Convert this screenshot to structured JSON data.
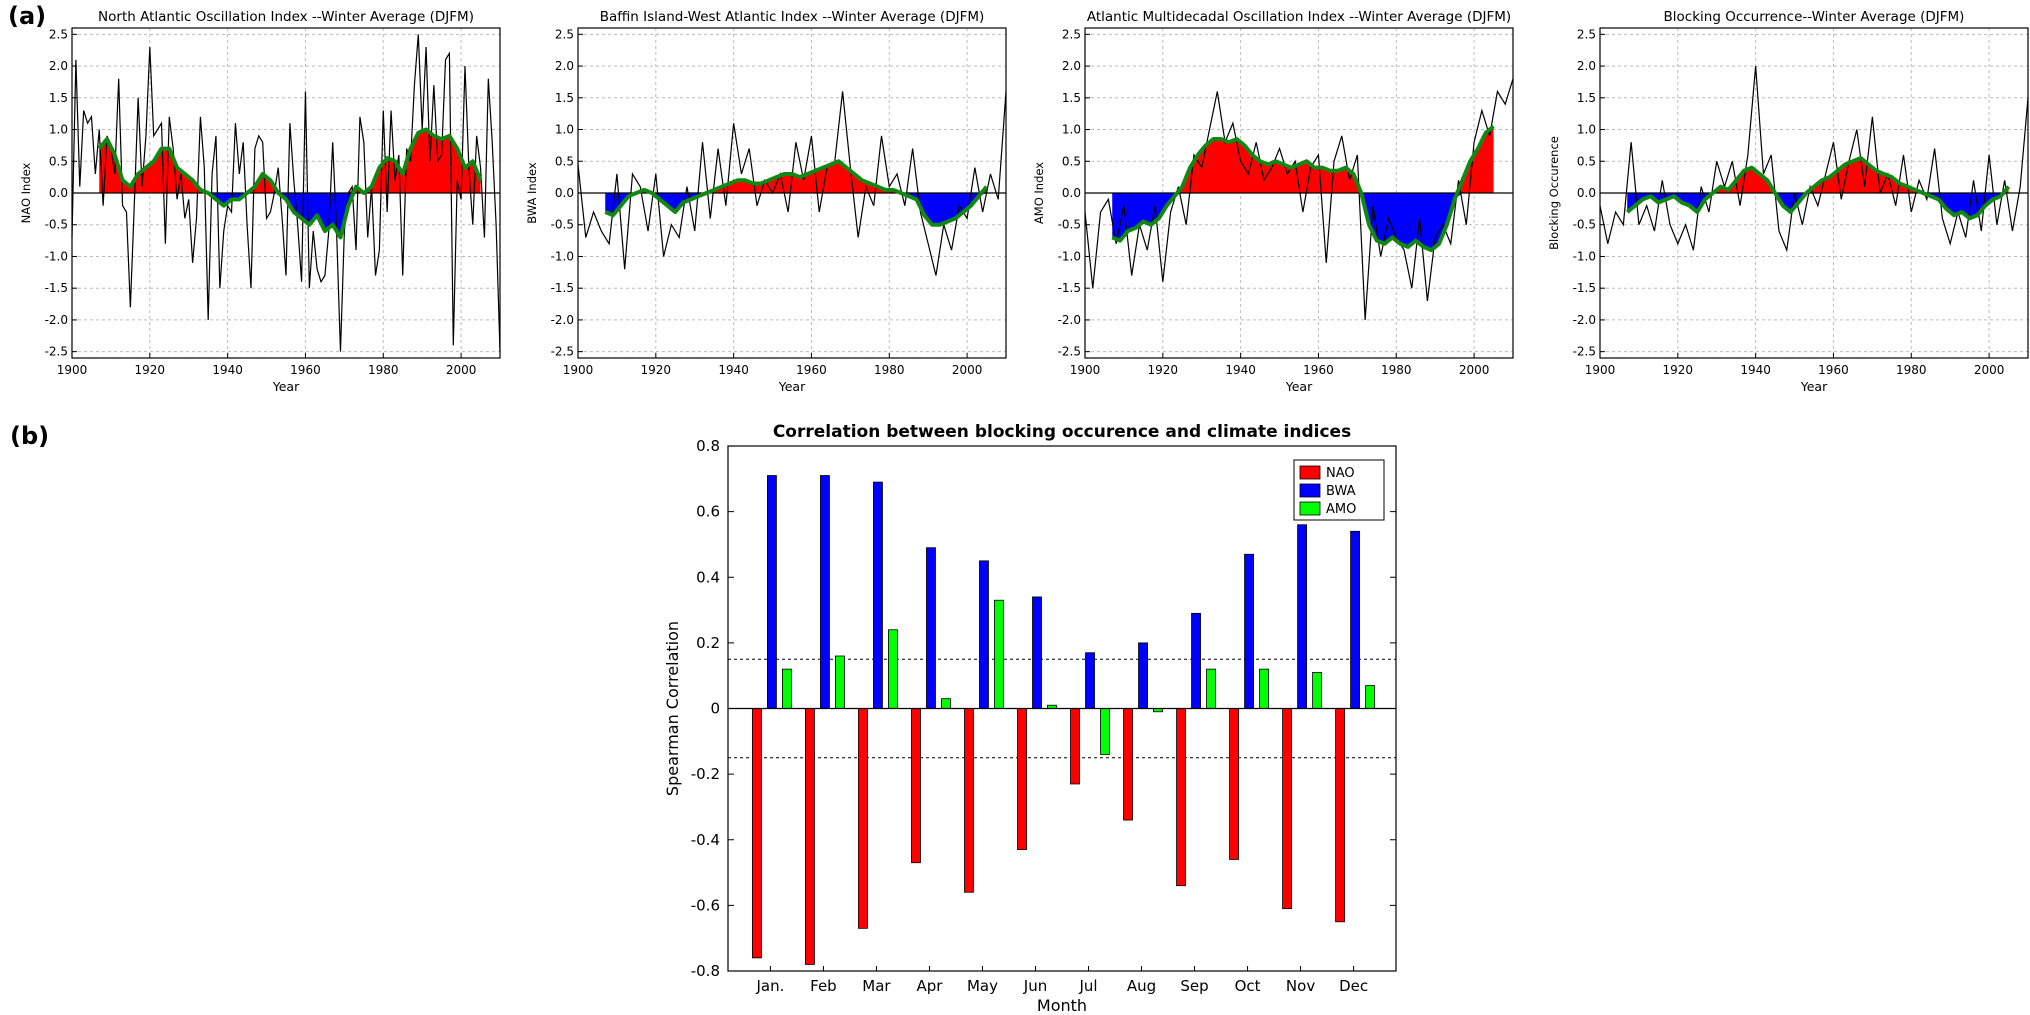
{
  "panel_labels": {
    "a": "(a)",
    "b": "(b)"
  },
  "colors": {
    "positive_fill": "#ff0000",
    "negative_fill": "#0000ff",
    "smooth_line": "#118811",
    "raw_line": "#000000",
    "grid": "#bbbbbb",
    "nao_bar": "#ff0000",
    "bwa_bar": "#0000ff",
    "amo_bar": "#00ff00"
  },
  "chart_data": [
    {
      "type": "area",
      "title": "North Atlantic Oscillation Index --Winter Average (DJFM)",
      "xlabel": "Year",
      "ylabel": "NAO Index",
      "xlim": [
        1900,
        2010
      ],
      "ylim": [
        -2.6,
        2.6
      ],
      "xticks": [
        1900,
        1920,
        1940,
        1960,
        1980,
        2000
      ],
      "yticks": [
        -2.5,
        -2.0,
        -1.5,
        -1.0,
        -0.5,
        0.0,
        0.5,
        1.0,
        1.5,
        2.0,
        2.5
      ],
      "grid": true,
      "smooth_x": [
        1907,
        1909,
        1911,
        1913,
        1915,
        1917,
        1919,
        1921,
        1923,
        1925,
        1927,
        1929,
        1931,
        1933,
        1935,
        1937,
        1939,
        1941,
        1943,
        1945,
        1947,
        1949,
        1951,
        1953,
        1955,
        1957,
        1959,
        1961,
        1963,
        1965,
        1967,
        1969,
        1971,
        1973,
        1975,
        1977,
        1979,
        1981,
        1983,
        1985,
        1987,
        1989,
        1991,
        1993,
        1995,
        1997,
        1999,
        2001,
        2003,
        2005
      ],
      "smooth_y": [
        0.7,
        0.85,
        0.6,
        0.2,
        0.1,
        0.3,
        0.4,
        0.5,
        0.7,
        0.7,
        0.4,
        0.3,
        0.2,
        0.05,
        0.0,
        -0.1,
        -0.2,
        -0.1,
        -0.1,
        0.0,
        0.1,
        0.3,
        0.2,
        0.0,
        -0.1,
        -0.3,
        -0.4,
        -0.5,
        -0.35,
        -0.6,
        -0.5,
        -0.7,
        -0.2,
        0.1,
        0.0,
        0.1,
        0.4,
        0.55,
        0.5,
        0.3,
        0.7,
        0.95,
        1.0,
        0.9,
        0.85,
        0.9,
        0.7,
        0.4,
        0.5,
        0.2
      ],
      "raw_x": [
        1900,
        1901,
        1902,
        1903,
        1904,
        1905,
        1906,
        1907,
        1908,
        1909,
        1910,
        1911,
        1912,
        1913,
        1914,
        1915,
        1916,
        1917,
        1918,
        1919,
        1920,
        1921,
        1922,
        1923,
        1924,
        1925,
        1926,
        1927,
        1928,
        1929,
        1930,
        1931,
        1932,
        1933,
        1934,
        1935,
        1936,
        1937,
        1938,
        1939,
        1940,
        1941,
        1942,
        1943,
        1944,
        1945,
        1946,
        1947,
        1948,
        1949,
        1950,
        1951,
        1952,
        1953,
        1954,
        1955,
        1956,
        1957,
        1958,
        1959,
        1960,
        1961,
        1962,
        1963,
        1964,
        1965,
        1966,
        1967,
        1968,
        1969,
        1970,
        1971,
        1972,
        1973,
        1974,
        1975,
        1976,
        1977,
        1978,
        1979,
        1980,
        1981,
        1982,
        1983,
        1984,
        1985,
        1986,
        1987,
        1988,
        1989,
        1990,
        1991,
        1992,
        1993,
        1994,
        1995,
        1996,
        1997,
        1998,
        1999,
        2000,
        2001,
        2002,
        2003,
        2004,
        2005,
        2006,
        2007,
        2008,
        2009,
        2010
      ],
      "raw_y": [
        -0.7,
        2.1,
        0.1,
        1.3,
        1.1,
        1.2,
        0.3,
        1.0,
        -0.2,
        0.9,
        0.7,
        0.3,
        1.8,
        -0.2,
        -0.3,
        -1.8,
        -0.2,
        1.5,
        0.1,
        0.9,
        2.3,
        0.9,
        1.0,
        1.1,
        -0.8,
        1.2,
        0.7,
        -0.1,
        0.3,
        -0.4,
        -0.1,
        -1.1,
        -0.4,
        1.2,
        0.4,
        -2.0,
        0.3,
        0.9,
        -1.5,
        -0.6,
        -0.2,
        -0.3,
        1.1,
        0.3,
        0.8,
        -0.5,
        -1.5,
        0.7,
        0.9,
        0.8,
        -0.4,
        -0.3,
        0.0,
        0.4,
        -0.4,
        -1.3,
        1.1,
        0.2,
        -0.5,
        -1.4,
        1.6,
        -1.5,
        -0.6,
        -1.2,
        -1.4,
        -1.3,
        -0.6,
        0.8,
        -0.6,
        -2.5,
        -0.6,
        0.0,
        0.1,
        -0.9,
        1.2,
        0.8,
        -0.7,
        0.1,
        -1.3,
        -0.9,
        1.3,
        -0.3,
        1.3,
        0.2,
        0.6,
        -1.3,
        0.7,
        0.5,
        1.7,
        2.5,
        1.0,
        2.3,
        0.5,
        1.7,
        0.5,
        0.6,
        2.1,
        2.2,
        -2.4,
        0.2,
        -0.1,
        2.0,
        0.4,
        -0.5,
        0.9,
        0.4,
        -0.7,
        1.8,
        0.8,
        -0.5,
        -2.5
      ]
    },
    {
      "type": "area",
      "title": "Baffin Island-West Atlantic Index --Winter Average (DJFM)",
      "xlabel": "Year",
      "ylabel": "BWA Index",
      "xlim": [
        1900,
        2010
      ],
      "ylim": [
        -2.6,
        2.6
      ],
      "xticks": [
        1900,
        1920,
        1940,
        1960,
        1980,
        2000
      ],
      "yticks": [
        -2.5,
        -2.0,
        -1.5,
        -1.0,
        -0.5,
        0.0,
        0.5,
        1.0,
        1.5,
        2.0,
        2.5
      ],
      "grid": true,
      "smooth_x": [
        1907,
        1909,
        1911,
        1913,
        1915,
        1917,
        1919,
        1921,
        1923,
        1925,
        1927,
        1929,
        1931,
        1933,
        1935,
        1937,
        1939,
        1941,
        1943,
        1945,
        1947,
        1949,
        1951,
        1953,
        1955,
        1957,
        1959,
        1961,
        1963,
        1965,
        1967,
        1969,
        1971,
        1973,
        1975,
        1977,
        1979,
        1981,
        1983,
        1985,
        1987,
        1989,
        1991,
        1993,
        1995,
        1997,
        1999,
        2001,
        2003,
        2005
      ],
      "smooth_y": [
        -0.3,
        -0.35,
        -0.2,
        -0.05,
        0.0,
        0.05,
        0.0,
        -0.1,
        -0.2,
        -0.3,
        -0.15,
        -0.1,
        -0.05,
        0.0,
        0.05,
        0.1,
        0.15,
        0.2,
        0.2,
        0.15,
        0.15,
        0.2,
        0.25,
        0.3,
        0.3,
        0.25,
        0.3,
        0.35,
        0.4,
        0.45,
        0.5,
        0.4,
        0.3,
        0.2,
        0.15,
        0.1,
        0.05,
        0.05,
        0.0,
        -0.05,
        -0.1,
        -0.35,
        -0.5,
        -0.5,
        -0.45,
        -0.4,
        -0.3,
        -0.2,
        -0.05,
        0.1
      ],
      "raw_x": [
        1900,
        1902,
        1904,
        1906,
        1908,
        1910,
        1912,
        1914,
        1916,
        1918,
        1920,
        1922,
        1924,
        1926,
        1928,
        1930,
        1932,
        1934,
        1936,
        1938,
        1940,
        1942,
        1944,
        1946,
        1948,
        1950,
        1952,
        1954,
        1956,
        1958,
        1960,
        1962,
        1964,
        1966,
        1968,
        1970,
        1972,
        1974,
        1976,
        1978,
        1980,
        1982,
        1984,
        1986,
        1988,
        1990,
        1992,
        1994,
        1996,
        1998,
        2000,
        2002,
        2004,
        2006,
        2008,
        2010
      ],
      "raw_y": [
        0.45,
        -0.7,
        -0.3,
        -0.6,
        -0.8,
        0.3,
        -1.2,
        0.3,
        0.1,
        -0.6,
        0.3,
        -1.0,
        -0.5,
        -0.7,
        0.1,
        -0.6,
        0.8,
        -0.4,
        0.7,
        -0.2,
        1.1,
        0.3,
        0.7,
        -0.2,
        0.2,
        0.0,
        0.3,
        -0.3,
        0.8,
        0.2,
        0.9,
        -0.3,
        0.4,
        0.5,
        1.6,
        0.4,
        -0.7,
        0.1,
        -0.2,
        0.9,
        0.1,
        0.3,
        -0.2,
        0.7,
        -0.3,
        -0.8,
        -1.3,
        -0.5,
        -0.9,
        -0.2,
        -0.4,
        0.4,
        -0.3,
        0.3,
        -0.1,
        1.6
      ]
    },
    {
      "type": "area",
      "title": "Atlantic Multidecadal Oscillation Index --Winter Average (DJFM)",
      "xlabel": "Year",
      "ylabel": "AMO Index",
      "xlim": [
        1900,
        2010
      ],
      "ylim": [
        -2.6,
        2.6
      ],
      "xticks": [
        1900,
        1920,
        1940,
        1960,
        1980,
        2000
      ],
      "yticks": [
        -2.5,
        -2.0,
        -1.5,
        -1.0,
        -0.5,
        0.0,
        0.5,
        1.0,
        1.5,
        2.0,
        2.5
      ],
      "grid": true,
      "smooth_x": [
        1907,
        1909,
        1911,
        1913,
        1915,
        1917,
        1919,
        1921,
        1923,
        1925,
        1927,
        1929,
        1931,
        1933,
        1935,
        1937,
        1939,
        1941,
        1943,
        1945,
        1947,
        1949,
        1951,
        1953,
        1955,
        1957,
        1959,
        1961,
        1963,
        1965,
        1967,
        1969,
        1971,
        1973,
        1975,
        1977,
        1979,
        1981,
        1983,
        1985,
        1987,
        1989,
        1991,
        1993,
        1995,
        1997,
        1999,
        2001,
        2003,
        2005
      ],
      "smooth_y": [
        -0.7,
        -0.75,
        -0.6,
        -0.55,
        -0.45,
        -0.5,
        -0.4,
        -0.2,
        -0.05,
        0.1,
        0.4,
        0.6,
        0.75,
        0.85,
        0.85,
        0.8,
        0.85,
        0.75,
        0.6,
        0.5,
        0.45,
        0.5,
        0.45,
        0.4,
        0.45,
        0.5,
        0.4,
        0.4,
        0.35,
        0.35,
        0.4,
        0.3,
        0.0,
        -0.5,
        -0.75,
        -0.8,
        -0.7,
        -0.8,
        -0.85,
        -0.75,
        -0.85,
        -0.9,
        -0.8,
        -0.5,
        -0.1,
        0.2,
        0.5,
        0.7,
        0.95,
        1.05
      ],
      "raw_x": [
        1900,
        1902,
        1904,
        1906,
        1908,
        1910,
        1912,
        1914,
        1916,
        1918,
        1920,
        1922,
        1924,
        1926,
        1928,
        1930,
        1932,
        1934,
        1936,
        1938,
        1940,
        1942,
        1944,
        1946,
        1948,
        1950,
        1952,
        1954,
        1956,
        1958,
        1960,
        1962,
        1964,
        1966,
        1968,
        1970,
        1972,
        1974,
        1976,
        1978,
        1980,
        1982,
        1984,
        1986,
        1988,
        1990,
        1992,
        1994,
        1996,
        1998,
        2000,
        2002,
        2004,
        2006,
        2008,
        2010
      ],
      "raw_y": [
        -0.3,
        -1.5,
        -0.3,
        -0.1,
        -0.8,
        -0.2,
        -1.3,
        -0.5,
        -0.9,
        -0.2,
        -1.4,
        -0.3,
        0.1,
        -0.5,
        0.6,
        0.4,
        1.0,
        1.6,
        0.8,
        1.1,
        0.5,
        0.3,
        0.8,
        0.2,
        0.4,
        0.7,
        0.3,
        0.5,
        -0.3,
        0.4,
        0.6,
        -1.1,
        0.5,
        0.9,
        0.2,
        0.6,
        -2.0,
        -0.2,
        -1.0,
        -0.4,
        -0.7,
        -0.9,
        -1.5,
        -0.4,
        -1.7,
        -0.7,
        -0.5,
        -0.8,
        0.2,
        -0.5,
        0.8,
        1.3,
        0.9,
        1.6,
        1.4,
        1.8
      ]
    },
    {
      "type": "area",
      "title": "Blocking Occurrence--Winter Average (DJFM)",
      "xlabel": "Year",
      "ylabel": "Blocking Occurence",
      "xlim": [
        1900,
        2010
      ],
      "ylim": [
        -2.6,
        2.6
      ],
      "xticks": [
        1900,
        1920,
        1940,
        1960,
        1980,
        2000
      ],
      "yticks": [
        -2.5,
        -2.0,
        -1.5,
        -1.0,
        -0.5,
        0.0,
        0.5,
        1.0,
        1.5,
        2.0,
        2.5
      ],
      "grid": true,
      "smooth_x": [
        1907,
        1909,
        1911,
        1913,
        1915,
        1917,
        1919,
        1921,
        1923,
        1925,
        1927,
        1929,
        1931,
        1933,
        1935,
        1937,
        1939,
        1941,
        1943,
        1945,
        1947,
        1949,
        1951,
        1953,
        1955,
        1957,
        1959,
        1961,
        1963,
        1965,
        1967,
        1969,
        1971,
        1973,
        1975,
        1977,
        1979,
        1981,
        1983,
        1985,
        1987,
        1989,
        1991,
        1993,
        1995,
        1997,
        1999,
        2001,
        2003,
        2005
      ],
      "smooth_y": [
        -0.3,
        -0.2,
        -0.1,
        -0.05,
        -0.15,
        -0.1,
        -0.05,
        -0.15,
        -0.2,
        -0.3,
        -0.1,
        0.0,
        0.1,
        0.05,
        0.2,
        0.35,
        0.4,
        0.3,
        0.2,
        0.0,
        -0.2,
        -0.3,
        -0.15,
        0.0,
        0.1,
        0.2,
        0.25,
        0.35,
        0.45,
        0.5,
        0.55,
        0.45,
        0.35,
        0.3,
        0.25,
        0.15,
        0.1,
        0.05,
        0.0,
        -0.05,
        -0.1,
        -0.25,
        -0.35,
        -0.3,
        -0.4,
        -0.35,
        -0.2,
        -0.1,
        -0.05,
        0.1
      ],
      "raw_x": [
        1900,
        1902,
        1904,
        1906,
        1908,
        1910,
        1912,
        1914,
        1916,
        1918,
        1920,
        1922,
        1924,
        1926,
        1928,
        1930,
        1932,
        1934,
        1936,
        1938,
        1940,
        1942,
        1944,
        1946,
        1948,
        1950,
        1952,
        1954,
        1956,
        1958,
        1960,
        1962,
        1964,
        1966,
        1968,
        1970,
        1972,
        1974,
        1976,
        1978,
        1980,
        1982,
        1984,
        1986,
        1988,
        1990,
        1992,
        1994,
        1996,
        1998,
        2000,
        2002,
        2004,
        2006,
        2008,
        2010
      ],
      "raw_y": [
        -0.2,
        -0.8,
        -0.3,
        -0.5,
        0.8,
        -0.5,
        -0.2,
        -0.6,
        0.2,
        -0.5,
        -0.8,
        -0.5,
        -0.9,
        0.1,
        -0.3,
        0.5,
        0.1,
        0.5,
        -0.2,
        0.6,
        2.0,
        0.3,
        0.6,
        -0.6,
        -0.9,
        0.0,
        -0.5,
        0.1,
        -0.2,
        0.3,
        0.8,
        -0.1,
        0.5,
        1.0,
        0.1,
        1.2,
        0.0,
        0.3,
        -0.2,
        0.6,
        -0.3,
        0.2,
        -0.1,
        0.7,
        -0.4,
        -0.8,
        -0.3,
        -0.7,
        0.2,
        -0.6,
        0.6,
        -0.5,
        0.2,
        -0.6,
        0.1,
        1.5
      ]
    },
    {
      "type": "bar",
      "title": "Correlation between blocking occurence and climate indices",
      "xlabel": "Month",
      "ylabel": "Spearman Correlation",
      "categories": [
        "Jan.",
        "Feb",
        "Mar",
        "Apr",
        "May",
        "Jun",
        "Jul",
        "Aug",
        "Sep",
        "Oct",
        "Nov",
        "Dec"
      ],
      "series": [
        {
          "name": "NAO",
          "values": [
            -0.76,
            -0.78,
            -0.67,
            -0.47,
            -0.56,
            -0.43,
            -0.23,
            -0.34,
            -0.54,
            -0.46,
            -0.61,
            -0.65
          ]
        },
        {
          "name": "BWA",
          "values": [
            0.71,
            0.71,
            0.69,
            0.49,
            0.45,
            0.34,
            0.17,
            0.2,
            0.29,
            0.47,
            0.56,
            0.54
          ]
        },
        {
          "name": "AMO",
          "values": [
            0.12,
            0.16,
            0.24,
            0.03,
            0.33,
            0.01,
            -0.14,
            -0.01,
            0.12,
            0.12,
            0.11,
            0.07
          ]
        }
      ],
      "ylim": [
        -0.8,
        0.8
      ],
      "yticks": [
        -0.8,
        -0.6,
        -0.4,
        -0.2,
        0,
        0.2,
        0.4,
        0.6,
        0.8
      ],
      "ytick_labels": [
        "-0.8",
        "-0.6",
        "-0.4",
        "-0.2",
        "0",
        "0.2",
        "0.4",
        "0.6",
        "0.8"
      ],
      "significance_lines": [
        0.15,
        -0.15
      ],
      "legend_position": "top-right",
      "grid": false
    }
  ]
}
